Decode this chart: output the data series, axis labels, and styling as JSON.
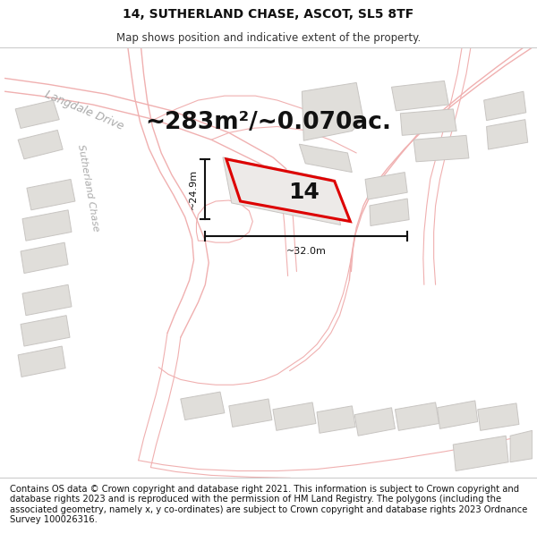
{
  "title": "14, SUTHERLAND CHASE, ASCOT, SL5 8TF",
  "subtitle": "Map shows position and indicative extent of the property.",
  "area_text": "~283m²/~0.070ac.",
  "width_label": "~32.0m",
  "height_label": "~24.9m",
  "plot_number": "14",
  "footer_text": "Contains OS data © Crown copyright and database right 2021. This information is subject to Crown copyright and database rights 2023 and is reproduced with the permission of HM Land Registry. The polygons (including the associated geometry, namely x, y co-ordinates) are subject to Crown copyright and database rights 2023 Ordnance Survey 100026316.",
  "bg_color": "#ffffff",
  "map_bg": "#f7f5f3",
  "road_color": "#f5c8c8",
  "building_fill": "#e0deda",
  "building_stroke": "#c8c5c2",
  "plot_stroke": "#dd0000",
  "plot_fill": "#eceae8",
  "dim_line_color": "#111111",
  "title_fontsize": 10,
  "subtitle_fontsize": 8.5,
  "area_fontsize": 19,
  "footer_fontsize": 7.2,
  "road_linewidth": 1.0,
  "road_color_line": "#f0b0b0"
}
